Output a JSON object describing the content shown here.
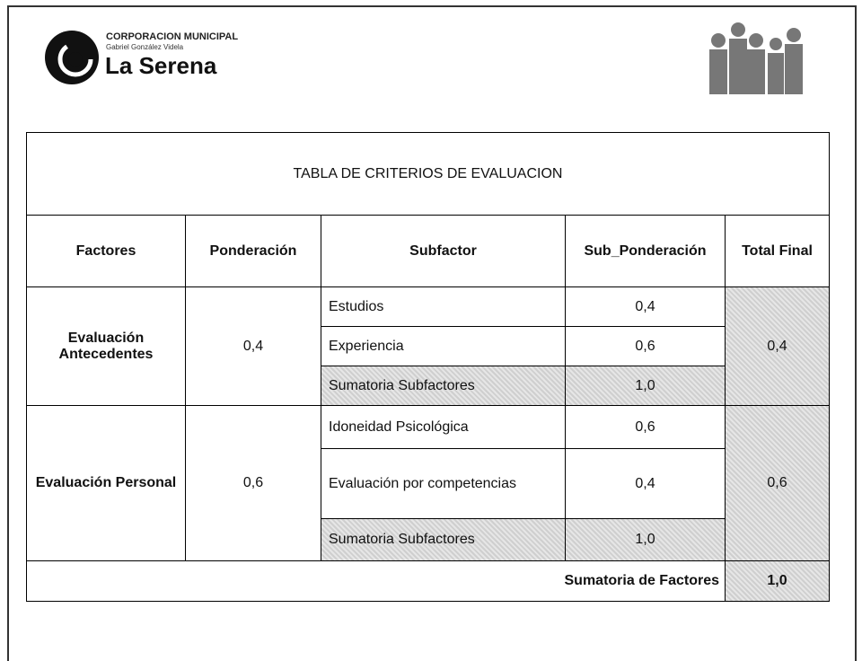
{
  "header": {
    "org": "CORPORACION MUNICIPAL",
    "subtitle": "Gabriel González Videla",
    "name": "La Serena"
  },
  "table": {
    "title": "TABLA DE CRITERIOS DE EVALUACION",
    "columns": [
      "Factores",
      "Ponderación",
      "Subfactor",
      "Sub_Ponderación",
      "Total Final"
    ],
    "groups": [
      {
        "factor": "Evaluación Antecedentes",
        "weight": "0,4",
        "subfactors": [
          {
            "name": "Estudios",
            "weight": "0,4"
          },
          {
            "name": "Experiencia",
            "weight": "0,6"
          }
        ],
        "sum_label": "Sumatoria Subfactores",
        "sum": "1,0",
        "total": "0,4"
      },
      {
        "factor": "Evaluación Personal",
        "weight": "0,6",
        "subfactors": [
          {
            "name": "Idoneidad Psicológica",
            "weight": "0,6"
          },
          {
            "name": "Evaluación por competencias",
            "weight": "0,4"
          }
        ],
        "sum_label": "Sumatoria Subfactores",
        "sum": "1,0",
        "total": "0,6"
      }
    ],
    "footer": {
      "label": "Sumatoria de Factores",
      "value": "1,0"
    }
  }
}
